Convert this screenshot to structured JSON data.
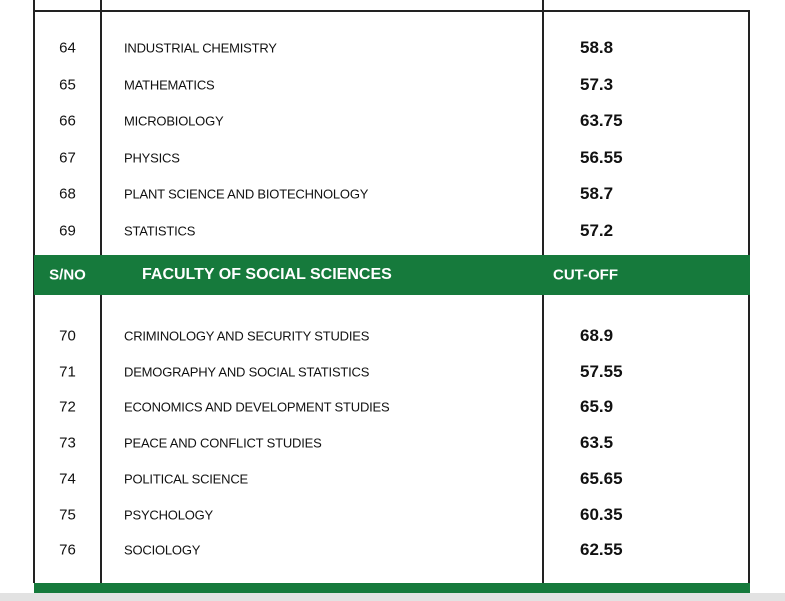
{
  "table": {
    "rows_before": [
      [
        "64",
        "INDUSTRIAL CHEMISTRY",
        "58.8"
      ],
      [
        "65",
        "MATHEMATICS",
        "57.3"
      ],
      [
        "66",
        "MICROBIOLOGY",
        "63.75"
      ],
      [
        "67",
        "PHYSICS",
        "56.55"
      ],
      [
        "68",
        "PLANT SCIENCE AND BIOTECHNOLOGY",
        "58.7"
      ],
      [
        "69",
        "STATISTICS",
        "57.2"
      ]
    ],
    "header": [
      "S/NO",
      "FACULTY OF SOCIAL SCIENCES",
      "CUT-OFF"
    ],
    "rows_after": [
      [
        "70",
        "CRIMINOLOGY AND SECURITY STUDIES",
        "68.9"
      ],
      [
        "71",
        "DEMOGRAPHY AND SOCIAL STATISTICS",
        "57.55"
      ],
      [
        "72",
        "ECONOMICS AND DEVELOPMENT STUDIES",
        "65.9"
      ],
      [
        "73",
        "PEACE AND CONFLICT STUDIES",
        "63.5"
      ],
      [
        "74",
        "POLITICAL SCIENCE",
        "65.65"
      ],
      [
        "75",
        "PSYCHOLOGY",
        "60.35"
      ],
      [
        "76",
        "SOCIOLOGY",
        "62.55"
      ]
    ]
  }
}
